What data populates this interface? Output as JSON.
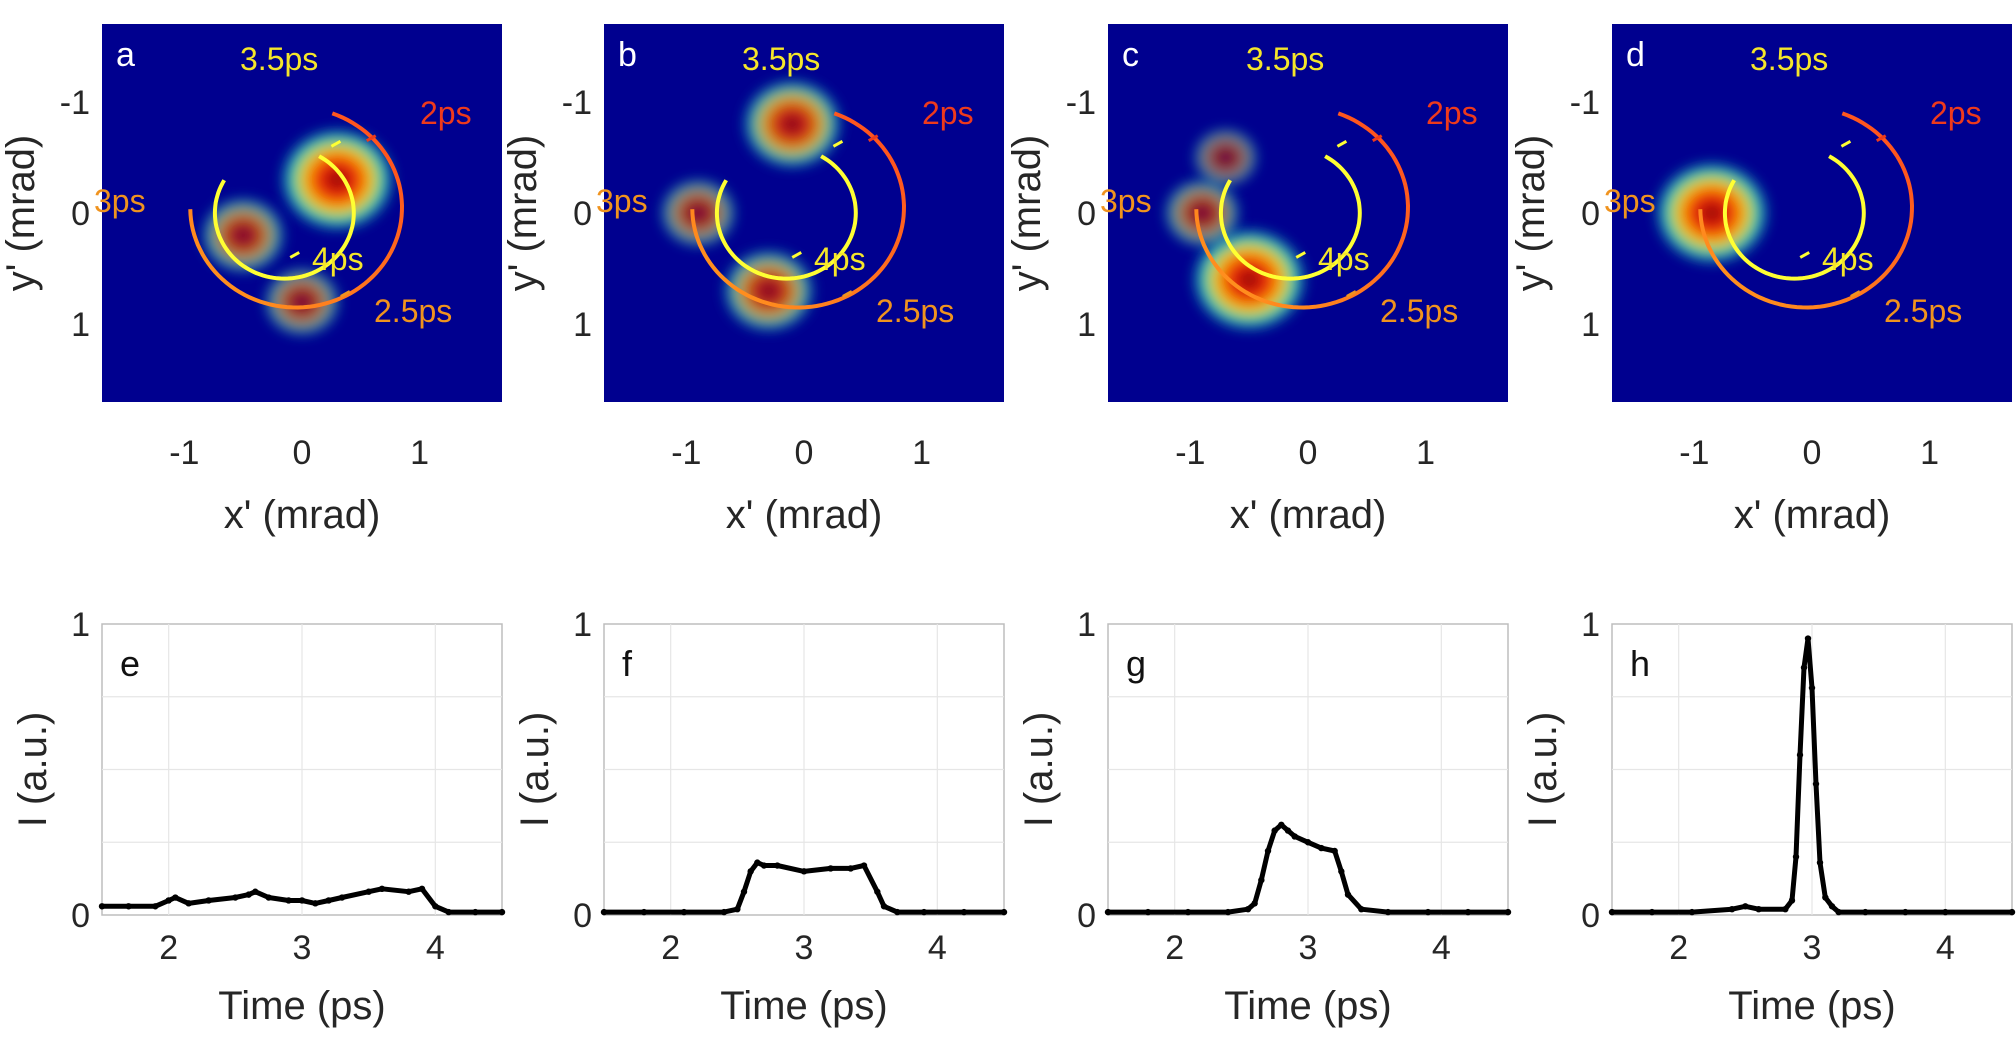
{
  "colors": {
    "background": "#00008F",
    "inner_ring": "#FFFF33",
    "outer_ring_start": "#FF4A1E",
    "outer_ring_end": "#FF9A1E",
    "label_yellow": "#F5E62A",
    "label_red": "#EE3A1C",
    "label_orange": "#F0931E",
    "axis_text": "#262626",
    "grid": "#E6E6E6",
    "line": "#000000"
  },
  "chart_data": [
    {
      "type": "heatmap",
      "panel": "a",
      "xlabel": "x' (mrad)",
      "ylabel": "y' (mrad)",
      "xlim": [
        -1.7,
        1.7
      ],
      "ylim": [
        1.7,
        -1.7
      ],
      "xticks": [
        "-1",
        "0",
        "1"
      ],
      "yticks": [
        "-1",
        "0",
        "1"
      ],
      "ring_labels": [
        "2ps",
        "2.5ps",
        "3ps",
        "3.5ps",
        "4ps"
      ],
      "density_regions": [
        {
          "x": 0.3,
          "y": -0.3,
          "intensity": 1.0
        },
        {
          "x": -0.5,
          "y": 0.2,
          "intensity": 0.6
        },
        {
          "x": 0.0,
          "y": 0.8,
          "intensity": 0.5
        }
      ]
    },
    {
      "type": "heatmap",
      "panel": "b",
      "xlabel": "x' (mrad)",
      "ylabel": "y' (mrad)",
      "xlim": [
        -1.7,
        1.7
      ],
      "ylim": [
        1.7,
        -1.7
      ],
      "xticks": [
        "-1",
        "0",
        "1"
      ],
      "yticks": [
        "-1",
        "0",
        "1"
      ],
      "ring_labels": [
        "2ps",
        "2.5ps",
        "3ps",
        "3.5ps",
        "4ps"
      ],
      "density_regions": [
        {
          "x": -0.1,
          "y": -0.8,
          "intensity": 0.8
        },
        {
          "x": -0.9,
          "y": 0.0,
          "intensity": 0.5
        },
        {
          "x": -0.3,
          "y": 0.7,
          "intensity": 0.7
        }
      ]
    },
    {
      "type": "heatmap",
      "panel": "c",
      "xlabel": "x' (mrad)",
      "ylabel": "y' (mrad)",
      "xlim": [
        -1.7,
        1.7
      ],
      "ylim": [
        1.7,
        -1.7
      ],
      "xticks": [
        "-1",
        "0",
        "1"
      ],
      "yticks": [
        "-1",
        "0",
        "1"
      ],
      "ring_labels": [
        "2ps",
        "2.5ps",
        "3ps",
        "3.5ps",
        "4ps"
      ],
      "density_regions": [
        {
          "x": -0.5,
          "y": 0.6,
          "intensity": 1.0
        },
        {
          "x": -0.9,
          "y": 0.0,
          "intensity": 0.5
        },
        {
          "x": -0.7,
          "y": -0.5,
          "intensity": 0.35
        }
      ]
    },
    {
      "type": "heatmap",
      "panel": "d",
      "xlabel": "x' (mrad)",
      "ylabel": "y' (mrad)",
      "xlim": [
        -1.7,
        1.7
      ],
      "ylim": [
        1.7,
        -1.7
      ],
      "xticks": [
        "-1",
        "0",
        "1"
      ],
      "yticks": [
        "-1",
        "0",
        "1"
      ],
      "ring_labels": [
        "2ps",
        "2.5ps",
        "3ps",
        "3.5ps",
        "4ps"
      ],
      "density_regions": [
        {
          "x": -0.85,
          "y": 0.0,
          "intensity": 1.0
        }
      ]
    },
    {
      "type": "line",
      "panel": "e",
      "xlabel": "Time (ps)",
      "ylabel": "I (a.u.)",
      "xlim": [
        1.5,
        4.5
      ],
      "ylim": [
        0,
        1
      ],
      "xticks": [
        "2",
        "3",
        "4"
      ],
      "yticks": [
        "0",
        "1"
      ],
      "grid": true,
      "x": [
        1.5,
        1.7,
        1.9,
        2.0,
        2.05,
        2.15,
        2.3,
        2.5,
        2.6,
        2.65,
        2.75,
        2.9,
        3.0,
        3.1,
        3.2,
        3.3,
        3.5,
        3.6,
        3.8,
        3.9,
        4.0,
        4.1,
        4.3,
        4.5
      ],
      "y": [
        0.03,
        0.03,
        0.03,
        0.05,
        0.06,
        0.04,
        0.05,
        0.06,
        0.07,
        0.08,
        0.06,
        0.05,
        0.05,
        0.04,
        0.05,
        0.06,
        0.08,
        0.09,
        0.08,
        0.09,
        0.03,
        0.01,
        0.01,
        0.01
      ]
    },
    {
      "type": "line",
      "panel": "f",
      "xlabel": "Time (ps)",
      "ylabel": "I (a.u.)",
      "xlim": [
        1.5,
        4.5
      ],
      "ylim": [
        0,
        1
      ],
      "xticks": [
        "2",
        "3",
        "4"
      ],
      "yticks": [
        "0",
        "1"
      ],
      "grid": true,
      "x": [
        1.5,
        1.8,
        2.1,
        2.4,
        2.5,
        2.55,
        2.6,
        2.65,
        2.7,
        2.8,
        3.0,
        3.2,
        3.35,
        3.45,
        3.55,
        3.6,
        3.7,
        3.9,
        4.2,
        4.5
      ],
      "y": [
        0.01,
        0.01,
        0.01,
        0.01,
        0.02,
        0.08,
        0.15,
        0.18,
        0.17,
        0.17,
        0.15,
        0.16,
        0.16,
        0.17,
        0.08,
        0.03,
        0.01,
        0.01,
        0.01,
        0.01
      ]
    },
    {
      "type": "line",
      "panel": "g",
      "xlabel": "Time (ps)",
      "ylabel": "I (a.u.)",
      "xlim": [
        1.5,
        4.5
      ],
      "ylim": [
        0,
        1
      ],
      "xticks": [
        "2",
        "3",
        "4"
      ],
      "yticks": [
        "0",
        "1"
      ],
      "grid": true,
      "x": [
        1.5,
        1.8,
        2.1,
        2.4,
        2.55,
        2.6,
        2.65,
        2.7,
        2.75,
        2.8,
        2.85,
        2.9,
        3.0,
        3.1,
        3.2,
        3.25,
        3.3,
        3.4,
        3.6,
        3.9,
        4.2,
        4.5
      ],
      "y": [
        0.01,
        0.01,
        0.01,
        0.01,
        0.02,
        0.04,
        0.12,
        0.22,
        0.29,
        0.31,
        0.29,
        0.27,
        0.25,
        0.23,
        0.22,
        0.15,
        0.07,
        0.02,
        0.01,
        0.01,
        0.01,
        0.01
      ]
    },
    {
      "type": "line",
      "panel": "h",
      "xlabel": "Time (ps)",
      "ylabel": "I (a.u.)",
      "xlim": [
        1.5,
        4.5
      ],
      "ylim": [
        0,
        1
      ],
      "xticks": [
        "2",
        "3",
        "4"
      ],
      "yticks": [
        "0",
        "1"
      ],
      "grid": true,
      "x": [
        1.5,
        1.8,
        2.1,
        2.4,
        2.5,
        2.6,
        2.8,
        2.85,
        2.88,
        2.91,
        2.94,
        2.97,
        3.0,
        3.03,
        3.06,
        3.1,
        3.15,
        3.2,
        3.4,
        3.7,
        4.0,
        4.5
      ],
      "y": [
        0.01,
        0.01,
        0.01,
        0.02,
        0.03,
        0.02,
        0.02,
        0.05,
        0.2,
        0.55,
        0.85,
        0.95,
        0.78,
        0.45,
        0.18,
        0.06,
        0.03,
        0.01,
        0.01,
        0.01,
        0.01,
        0.01
      ]
    }
  ]
}
